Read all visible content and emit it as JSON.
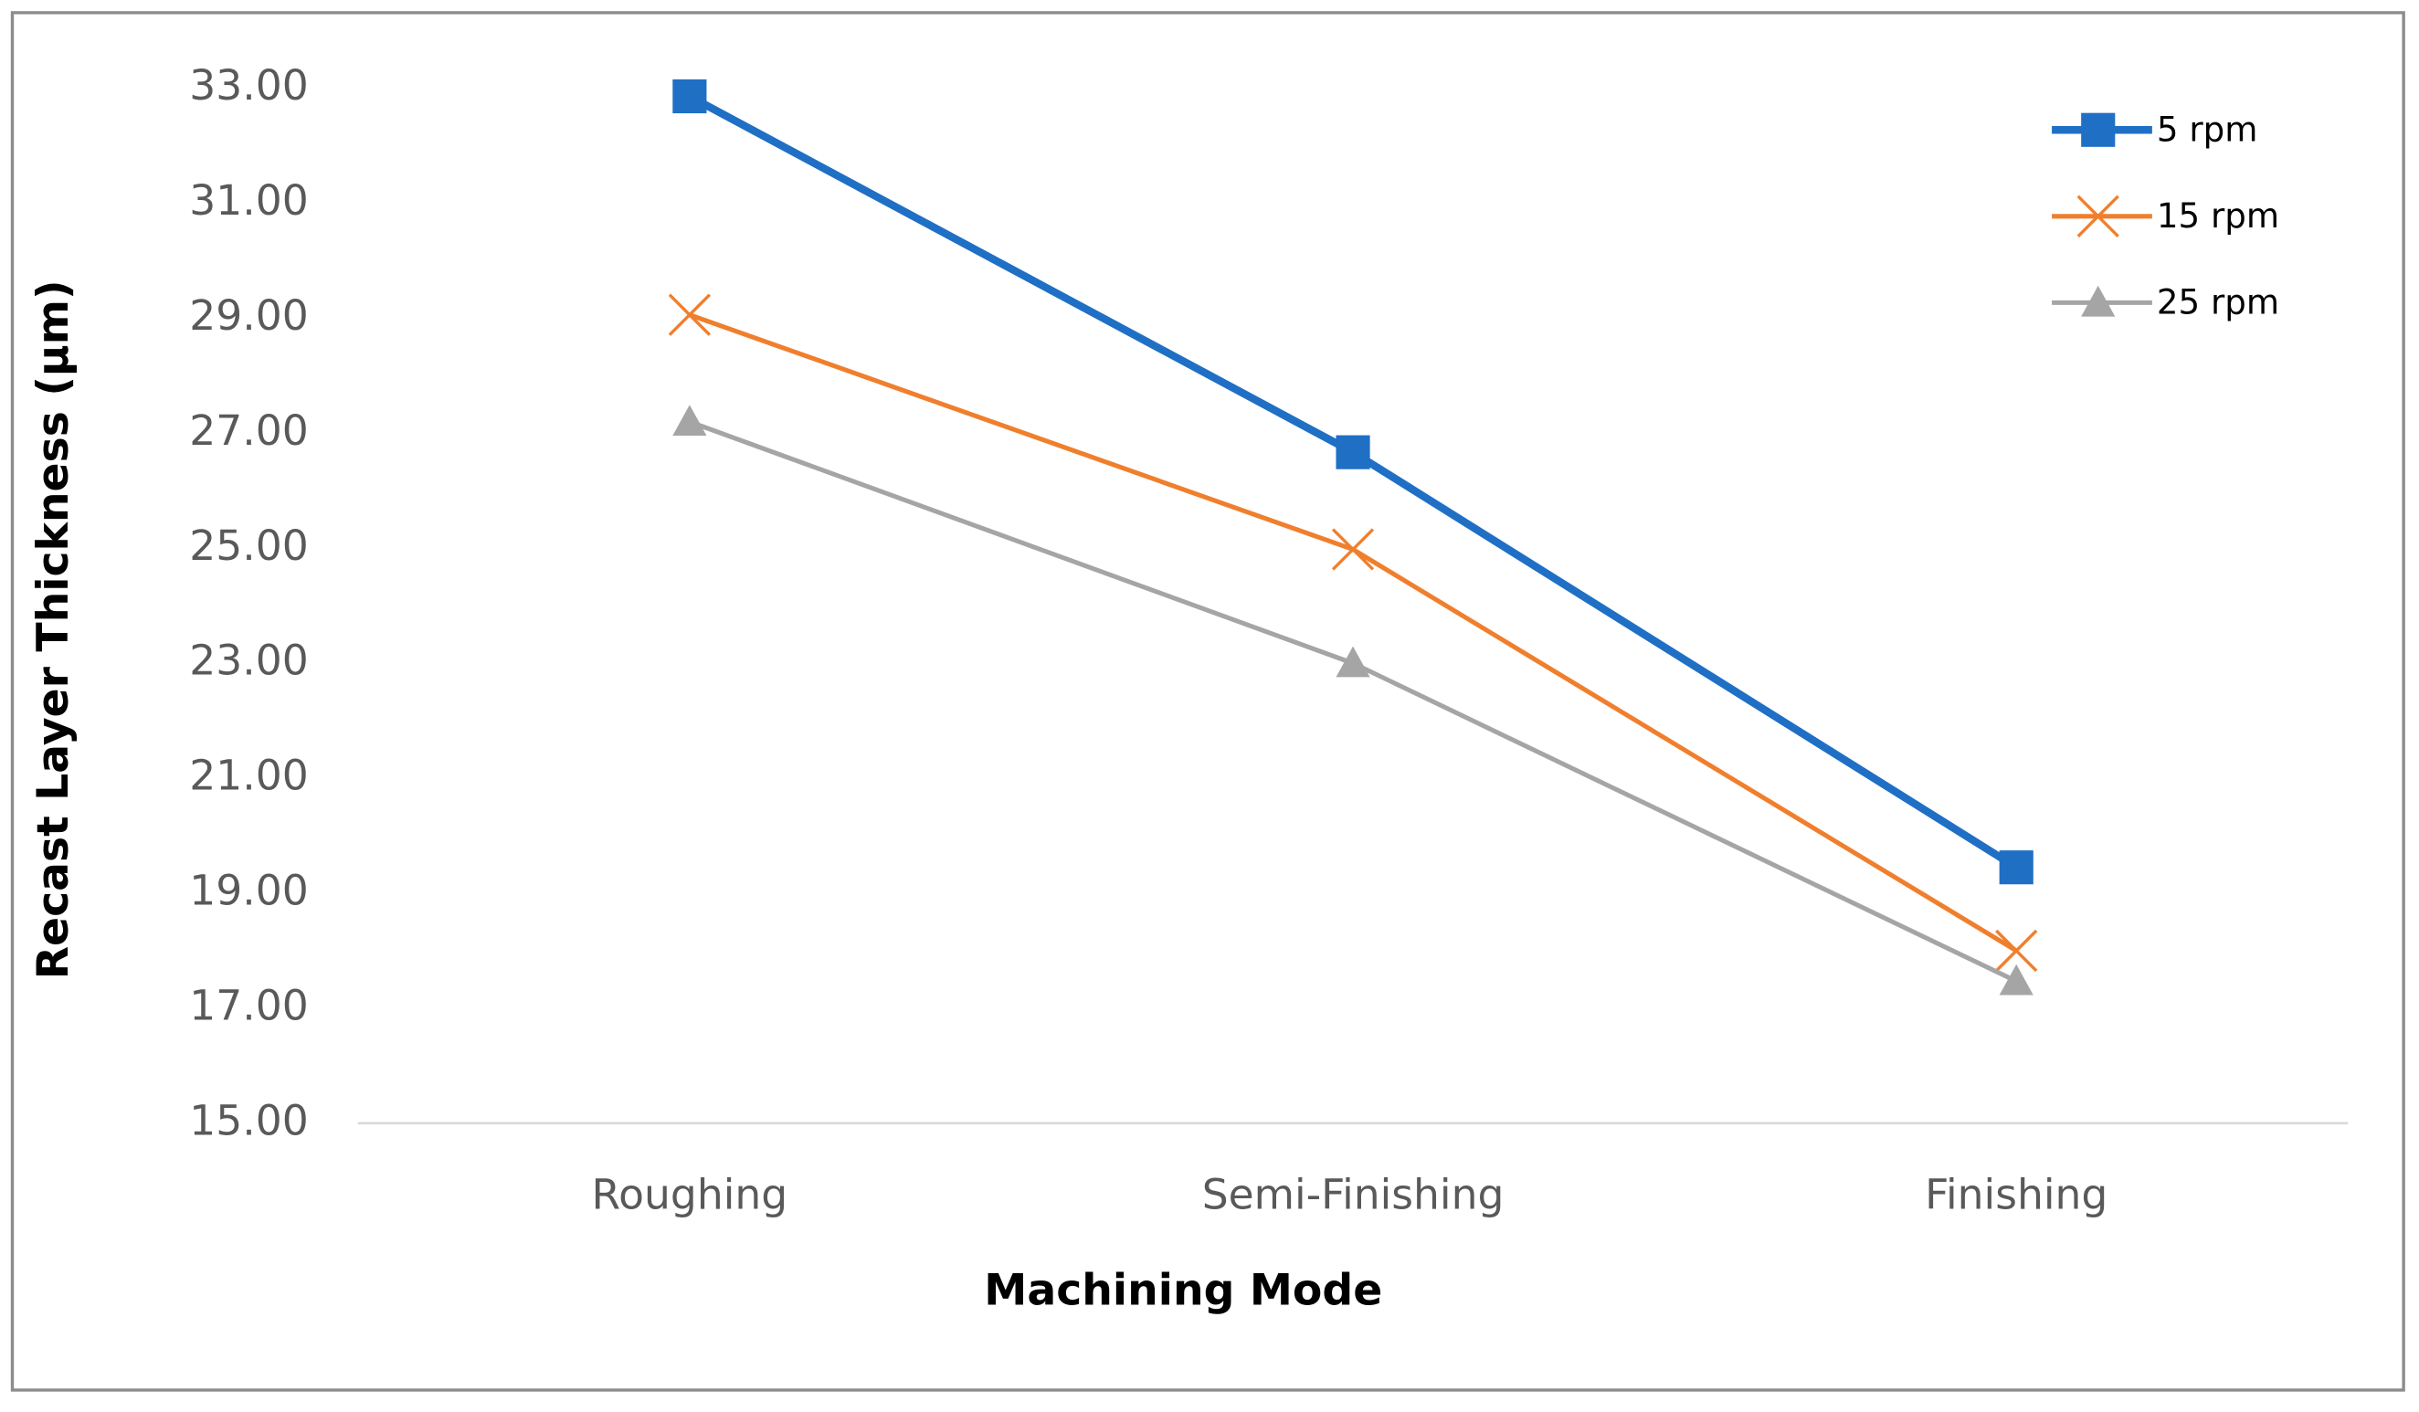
{
  "chart_data": {
    "type": "line",
    "x_label": "Machining Mode",
    "y_label": "Recast Layer Thickness (µm)",
    "categories": [
      "Roughing",
      "Semi-Finishing",
      "Finishing"
    ],
    "series": [
      {
        "name": "5 rpm",
        "color": "#1f6fc5",
        "marker": "square",
        "values": [
          32.86,
          26.67,
          19.45
        ]
      },
      {
        "name": "15 rpm",
        "color": "#f07f2d",
        "marker": "x",
        "values": [
          29.06,
          24.98,
          18.0
        ]
      },
      {
        "name": "25 rpm",
        "color": "#a5a5a5",
        "marker": "triangle",
        "values": [
          27.2,
          23.0,
          17.47
        ]
      }
    ],
    "ylim": [
      15,
      33
    ],
    "yticks": [
      {
        "value": 15,
        "label": "15.00"
      },
      {
        "value": 17,
        "label": "17.00"
      },
      {
        "value": 19,
        "label": "19.00"
      },
      {
        "value": 21,
        "label": "21.00"
      },
      {
        "value": 23,
        "label": "23.00"
      },
      {
        "value": 25,
        "label": "25.00"
      },
      {
        "value": 27,
        "label": "27.00"
      },
      {
        "value": 29,
        "label": "29.00"
      },
      {
        "value": 31,
        "label": "31.00"
      },
      {
        "value": 33,
        "label": "33.00"
      }
    ],
    "grid": false,
    "legend_position": "top-right"
  }
}
